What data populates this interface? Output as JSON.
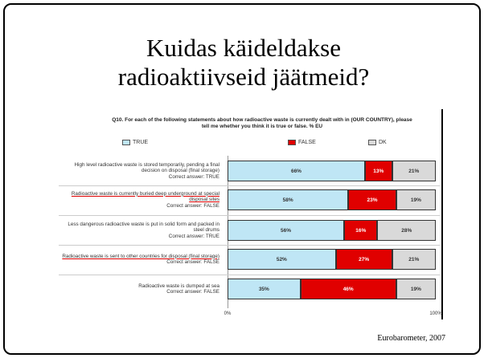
{
  "chart_data": {
    "type": "stacked-bar-horizontal",
    "title": "Kuidas käideldakse radioaktiivseid jäätmeid?",
    "subtitle": "Q10. For each of the following statements about how radioactive waste is currently dealt with in (OUR COUNTRY), please tell me whether you think it is true or false. % EU",
    "categories": [
      "High level radioactive waste is stored temporarily, pending a final decision on disposal (final storage)",
      "Radioactive waste is currently buried deep underground at special disposal sites",
      "Less dangerous radioactive waste is put in solid form and packed in steel drums",
      "Radioactive waste is sent to other countries for disposal (final storage)",
      "Radioactive waste is dumped at sea"
    ],
    "correct_answers": [
      "Correct answer: TRUE",
      "Correct answer: FALSE",
      "Correct answer: TRUE",
      "Correct answer: FALSE",
      "Correct answer: FALSE"
    ],
    "underlined": [
      false,
      true,
      false,
      true,
      false
    ],
    "series": [
      {
        "name": "TRUE",
        "color": "#bfe6f5",
        "values": [
          66,
          58,
          56,
          52,
          35
        ],
        "value_labels": [
          "66%",
          "58%",
          "56%",
          "52%",
          "35%"
        ]
      },
      {
        "name": "FALSE",
        "color": "#e00000",
        "values": [
          13,
          23,
          16,
          27,
          46
        ],
        "value_labels": [
          "13%",
          "23%",
          "16%",
          "27%",
          "46%"
        ]
      },
      {
        "name": "DK",
        "color": "#d9d9d9",
        "values": [
          21,
          19,
          28,
          21,
          19
        ],
        "value_labels": [
          "21%",
          "19%",
          "28%",
          "21%",
          "19%"
        ]
      }
    ],
    "xlim": [
      0,
      100
    ],
    "xticks": [
      {
        "value": 0,
        "label": "0%"
      },
      {
        "value": 100,
        "label": "100%"
      }
    ],
    "source": "Eurobarometer, 2007"
  }
}
